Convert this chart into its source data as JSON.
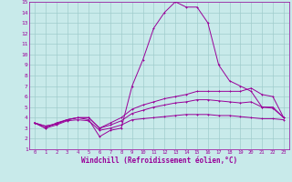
{
  "series": {
    "temp": [
      3.5,
      3.0,
      3.5,
      3.8,
      4.0,
      3.8,
      2.2,
      2.8,
      3.0,
      7.0,
      9.5,
      12.5,
      14.0,
      15.0,
      14.5,
      14.5,
      13.0,
      9.0,
      7.5,
      7.0,
      6.5,
      5.0,
      5.0,
      4.0
    ],
    "high": [
      3.5,
      3.2,
      3.4,
      3.8,
      4.0,
      4.0,
      3.0,
      3.5,
      4.0,
      4.8,
      5.2,
      5.5,
      5.8,
      6.0,
      6.2,
      6.5,
      6.5,
      6.5,
      6.5,
      6.5,
      6.8,
      6.2,
      6.0,
      4.0
    ],
    "mid": [
      3.5,
      3.2,
      3.4,
      3.8,
      4.0,
      4.0,
      3.0,
      3.3,
      3.7,
      4.4,
      4.7,
      5.0,
      5.2,
      5.4,
      5.5,
      5.7,
      5.7,
      5.6,
      5.5,
      5.4,
      5.5,
      5.0,
      4.9,
      4.0
    ],
    "low": [
      3.5,
      3.0,
      3.3,
      3.7,
      3.8,
      3.7,
      2.8,
      3.0,
      3.3,
      3.8,
      3.9,
      4.0,
      4.1,
      4.2,
      4.3,
      4.3,
      4.3,
      4.2,
      4.2,
      4.1,
      4.0,
      3.9,
      3.9,
      3.8
    ]
  },
  "color": "#990099",
  "bg_color": "#c8eaea",
  "grid_color": "#a0cccc",
  "ylim": [
    1,
    15
  ],
  "xlim": [
    -0.5,
    23.5
  ],
  "xlabel": "Windchill (Refroidissement éolien,°C)",
  "yticks": [
    1,
    2,
    3,
    4,
    5,
    6,
    7,
    8,
    9,
    10,
    11,
    12,
    13,
    14,
    15
  ],
  "xticks": [
    0,
    1,
    2,
    3,
    4,
    5,
    6,
    7,
    8,
    9,
    10,
    11,
    12,
    13,
    14,
    15,
    16,
    17,
    18,
    19,
    20,
    21,
    22,
    23
  ],
  "title_fontsize": 5,
  "tick_fontsize": 4.5,
  "xlabel_fontsize": 5.5
}
